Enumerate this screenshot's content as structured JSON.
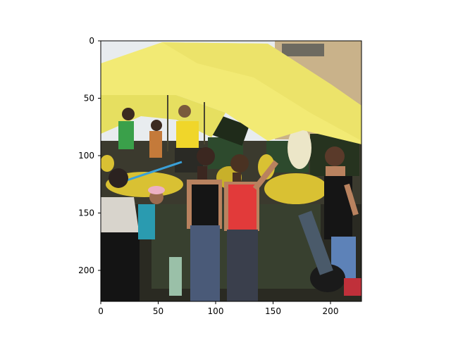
{
  "figure": {
    "image_description_label": "market stall photo",
    "x_ticks": [
      "0",
      "50",
      "100",
      "150",
      "200"
    ],
    "y_ticks": [
      "0",
      "50",
      "100",
      "150",
      "200"
    ]
  },
  "colors": {
    "tarp_yellow": "#f2ea74",
    "tarp_shadow": "#d8cf52",
    "banana": "#d9c133",
    "crate_green": "#2d4a2d",
    "sky": "#e8ecef",
    "wall": "#c9b28a",
    "ground": "#2a2a22",
    "red_top": "#e23a3a",
    "black_top": "#151515",
    "jeans": "#4a5a78",
    "skin": "#b9825f"
  }
}
